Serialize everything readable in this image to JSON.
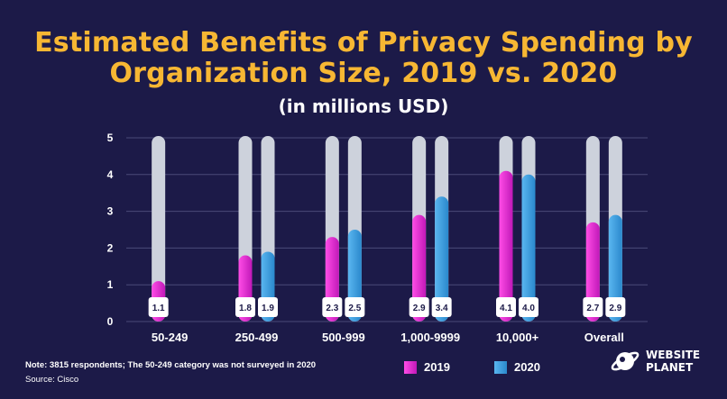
{
  "chart_data": {
    "type": "bar",
    "title_lines": [
      "Estimated Benefits of Privacy Spending by",
      "Organization Size, 2019 vs. 2020"
    ],
    "subtitle": "(in millions USD)",
    "categories": [
      "50-249",
      "250-499",
      "500-999",
      "1,000-9999",
      "10,000+",
      "Overall"
    ],
    "series": [
      {
        "name": "2019",
        "color": "#e020d0",
        "values": [
          1.1,
          1.8,
          2.3,
          2.9,
          4.1,
          2.7
        ],
        "labels": [
          "1.1",
          "1.8",
          "2.3",
          "2.9",
          "4.1",
          "2.7"
        ]
      },
      {
        "name": "2020",
        "color": "#3a9ee0",
        "values": [
          null,
          1.9,
          2.5,
          3.4,
          4.0,
          2.9
        ],
        "labels": [
          null,
          "1.9",
          "2.5",
          "3.4",
          "4.0",
          "2.9"
        ]
      }
    ],
    "ylim": [
      0,
      5
    ],
    "yticks": [
      "0",
      "1",
      "2",
      "3",
      "4",
      "5"
    ],
    "grid": true,
    "legend": "bottom-center",
    "track_color": "#cdd2dc"
  },
  "footer": {
    "note": "Note: 3815 respondents; The 50-249 category was not surveyed in 2020",
    "source": "Source: Cisco"
  },
  "logo": {
    "line1": "WEBSITE",
    "line2": "PLANET",
    "icon": "planet-icon"
  }
}
